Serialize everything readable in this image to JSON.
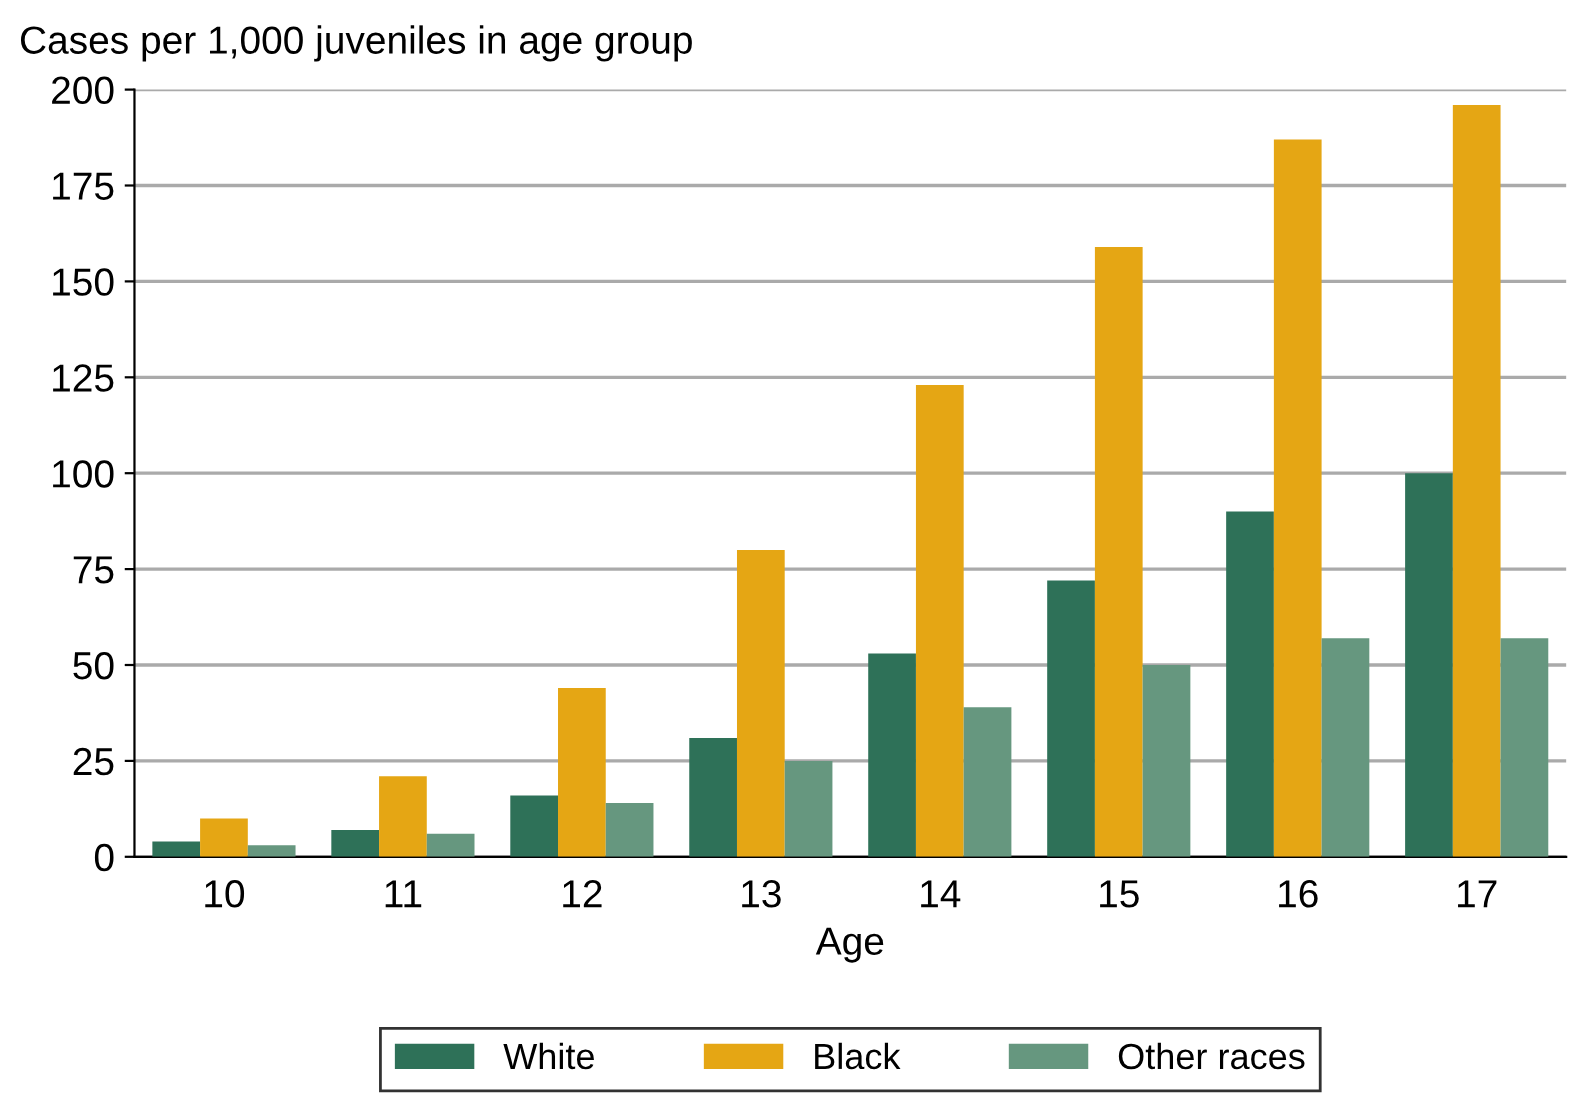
{
  "chart_data": {
    "type": "bar",
    "ylabel": "Cases per 1,000 juveniles in age group",
    "xlabel": "Age",
    "categories": [
      "10",
      "11",
      "12",
      "13",
      "14",
      "15",
      "16",
      "17"
    ],
    "series": [
      {
        "name": "White",
        "color": "#2e7158",
        "values": [
          4,
          7,
          16,
          31,
          53,
          72,
          90,
          100
        ]
      },
      {
        "name": "Black",
        "color": "#e5a614",
        "values": [
          10,
          21,
          44,
          80,
          123,
          159,
          187,
          196
        ]
      },
      {
        "name": "Other races",
        "color": "#66977f",
        "values": [
          3,
          6,
          14,
          25,
          39,
          50,
          57,
          57
        ]
      }
    ],
    "ylim": [
      0,
      200
    ],
    "yticks": [
      0,
      25,
      50,
      75,
      100,
      125,
      150,
      175,
      200
    ],
    "grid": "y",
    "legend": "bottom"
  }
}
